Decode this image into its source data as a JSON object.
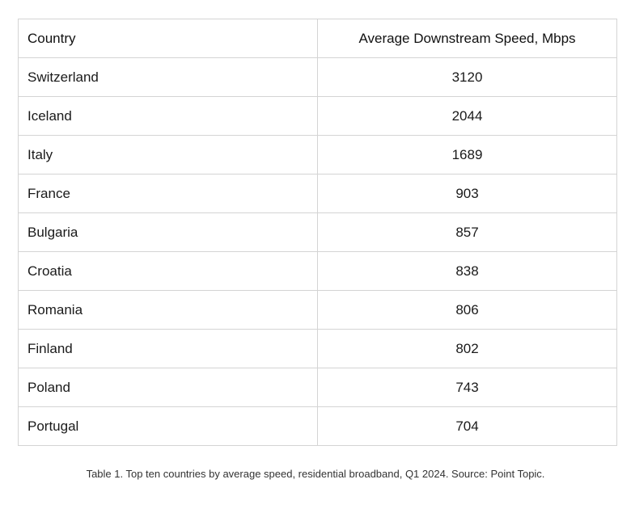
{
  "table": {
    "headers": {
      "country": "Country",
      "speed": "Average Downstream Speed, Mbps"
    },
    "rows": [
      {
        "country": "Switzerland",
        "speed": "3120"
      },
      {
        "country": "Iceland",
        "speed": "2044"
      },
      {
        "country": "Italy",
        "speed": "1689"
      },
      {
        "country": "France",
        "speed": "903"
      },
      {
        "country": "Bulgaria",
        "speed": "857"
      },
      {
        "country": "Croatia",
        "speed": "838"
      },
      {
        "country": "Romania",
        "speed": "806"
      },
      {
        "country": "Finland",
        "speed": "802"
      },
      {
        "country": "Poland",
        "speed": "743"
      },
      {
        "country": "Portugal",
        "speed": "704"
      }
    ]
  },
  "caption": "Table 1. Top ten countries by average speed, residential broadband, Q1 2024. Source: Point Topic."
}
